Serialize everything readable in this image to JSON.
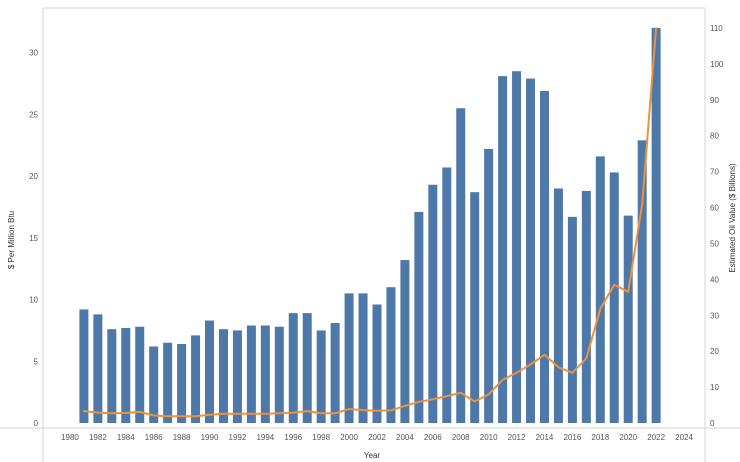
{
  "chart_data": {
    "type": "bar",
    "title": "",
    "xlabel": "Year",
    "ylabel": "$ Per Million Btu",
    "y2label": "Estimated Oil Value ($ Billions)",
    "xlim": [
      1979,
      2025
    ],
    "ylim": [
      0,
      32
    ],
    "y2lim": [
      0,
      110
    ],
    "x_ticks": [
      "1980",
      "1982",
      "1984",
      "1986",
      "1988",
      "1990",
      "1992",
      "1994",
      "1996",
      "1998",
      "2000",
      "2002",
      "2004",
      "2006",
      "2008",
      "2010",
      "2012",
      "2014",
      "2016",
      "2018",
      "2020",
      "2022",
      "2024"
    ],
    "y_ticks": [
      0,
      5,
      10,
      15,
      20,
      25,
      30
    ],
    "y2_ticks": [
      0,
      10,
      20,
      30,
      40,
      50,
      60,
      70,
      80,
      90,
      100,
      110
    ],
    "grid": false,
    "colors": {
      "bars": "#4e78a8",
      "line": "#f0913a"
    },
    "x": [
      1981,
      1982,
      1983,
      1984,
      1985,
      1986,
      1987,
      1988,
      1989,
      1990,
      1991,
      1992,
      1993,
      1994,
      1995,
      1996,
      1997,
      1998,
      1999,
      2000,
      2001,
      2002,
      2003,
      2004,
      2005,
      2006,
      2007,
      2008,
      2009,
      2010,
      2011,
      2012,
      2013,
      2014,
      2015,
      2016,
      2017,
      2018,
      2019,
      2020,
      2021,
      2022
    ],
    "series": [
      {
        "type": "bar",
        "axis": "left",
        "values": [
          9.2,
          8.8,
          7.6,
          7.7,
          7.8,
          6.2,
          6.5,
          6.4,
          7.1,
          8.3,
          7.6,
          7.5,
          7.9,
          7.9,
          7.8,
          8.9,
          8.9,
          7.5,
          8.1,
          10.5,
          10.5,
          9.6,
          11.0,
          13.2,
          17.1,
          19.3,
          20.7,
          25.5,
          18.7,
          22.2,
          28.1,
          28.5,
          27.9,
          26.9,
          19.0,
          16.7,
          18.8,
          21.6,
          20.3,
          16.8,
          22.9,
          32.0
        ]
      },
      {
        "type": "line",
        "axis": "right",
        "values": [
          3.3,
          2.9,
          2.7,
          2.8,
          3.1,
          2.1,
          1.9,
          1.9,
          1.9,
          2.3,
          2.6,
          2.6,
          2.6,
          2.6,
          2.7,
          2.9,
          3.3,
          2.7,
          2.7,
          3.9,
          3.6,
          3.4,
          3.5,
          4.8,
          5.9,
          6.6,
          7.5,
          8.4,
          6.0,
          8.0,
          12.0,
          14.0,
          16.3,
          19.0,
          15.5,
          14.0,
          18.0,
          31.8,
          38.5,
          36.5,
          61.0,
          110.0
        ]
      }
    ]
  }
}
